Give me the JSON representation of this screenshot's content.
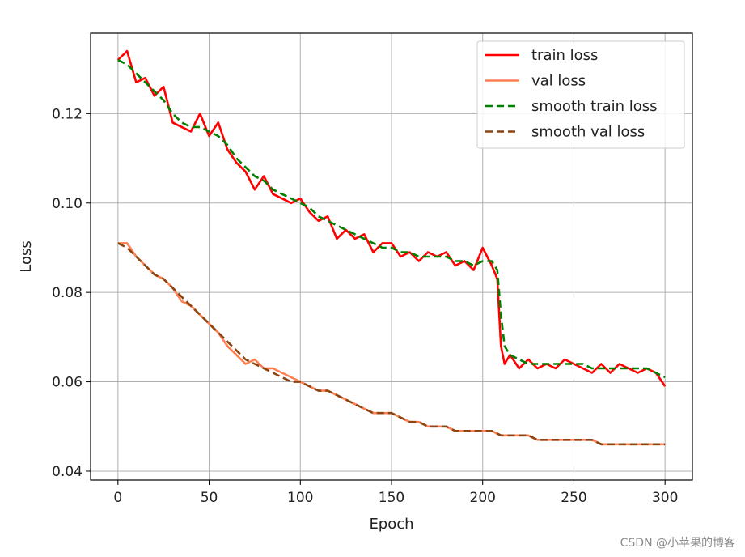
{
  "chart_data": {
    "type": "line",
    "xlabel": "Epoch",
    "ylabel": "Loss",
    "xlim": [
      -15,
      315
    ],
    "ylim": [
      0.038,
      0.138
    ],
    "xticks": [
      0,
      50,
      100,
      150,
      200,
      250,
      300
    ],
    "yticks": [
      0.04,
      0.06,
      0.08,
      0.1,
      0.12
    ],
    "ytick_labels": [
      "0.04",
      "0.06",
      "0.08",
      "0.10",
      "0.12"
    ],
    "grid": true,
    "legend_position": "top-right",
    "series": [
      {
        "name": "train loss",
        "color": "#ff0000",
        "style": "solid",
        "x": [
          0,
          5,
          10,
          15,
          20,
          25,
          30,
          35,
          40,
          45,
          50,
          55,
          60,
          65,
          70,
          75,
          80,
          85,
          90,
          95,
          100,
          105,
          110,
          115,
          120,
          125,
          130,
          135,
          140,
          145,
          150,
          155,
          160,
          165,
          170,
          175,
          180,
          185,
          190,
          195,
          200,
          205,
          208,
          210,
          212,
          215,
          220,
          225,
          230,
          235,
          240,
          245,
          250,
          255,
          260,
          265,
          270,
          275,
          280,
          285,
          290,
          295,
          300
        ],
        "y": [
          0.132,
          0.134,
          0.127,
          0.128,
          0.124,
          0.126,
          0.118,
          0.117,
          0.116,
          0.12,
          0.115,
          0.118,
          0.112,
          0.109,
          0.107,
          0.103,
          0.106,
          0.102,
          0.101,
          0.1,
          0.101,
          0.098,
          0.096,
          0.097,
          0.092,
          0.094,
          0.092,
          0.093,
          0.089,
          0.091,
          0.091,
          0.088,
          0.089,
          0.087,
          0.089,
          0.088,
          0.089,
          0.086,
          0.087,
          0.085,
          0.09,
          0.086,
          0.083,
          0.068,
          0.064,
          0.066,
          0.063,
          0.065,
          0.063,
          0.064,
          0.063,
          0.065,
          0.064,
          0.063,
          0.062,
          0.064,
          0.062,
          0.064,
          0.063,
          0.062,
          0.063,
          0.062,
          0.059
        ]
      },
      {
        "name": "val loss",
        "color": "#ff7f50",
        "style": "solid",
        "x": [
          0,
          5,
          10,
          15,
          20,
          25,
          30,
          35,
          40,
          45,
          50,
          55,
          60,
          65,
          70,
          75,
          80,
          85,
          90,
          95,
          100,
          105,
          110,
          115,
          120,
          125,
          130,
          135,
          140,
          145,
          150,
          155,
          160,
          165,
          170,
          175,
          180,
          185,
          190,
          195,
          200,
          205,
          210,
          215,
          220,
          225,
          230,
          235,
          240,
          245,
          250,
          255,
          260,
          265,
          270,
          275,
          280,
          285,
          290,
          295,
          300
        ],
        "y": [
          0.091,
          0.091,
          0.088,
          0.086,
          0.084,
          0.083,
          0.081,
          0.078,
          0.077,
          0.075,
          0.073,
          0.071,
          0.068,
          0.066,
          0.064,
          0.065,
          0.063,
          0.063,
          0.062,
          0.061,
          0.06,
          0.059,
          0.058,
          0.058,
          0.057,
          0.056,
          0.055,
          0.054,
          0.053,
          0.053,
          0.053,
          0.052,
          0.051,
          0.051,
          0.05,
          0.05,
          0.05,
          0.049,
          0.049,
          0.049,
          0.049,
          0.049,
          0.048,
          0.048,
          0.048,
          0.048,
          0.047,
          0.047,
          0.047,
          0.047,
          0.047,
          0.047,
          0.047,
          0.046,
          0.046,
          0.046,
          0.046,
          0.046,
          0.046,
          0.046,
          0.046
        ]
      },
      {
        "name": "smooth train loss",
        "color": "#008000",
        "style": "dashed",
        "x": [
          0,
          5,
          10,
          15,
          20,
          25,
          30,
          35,
          40,
          45,
          50,
          55,
          60,
          65,
          70,
          75,
          80,
          85,
          90,
          95,
          100,
          105,
          110,
          115,
          120,
          125,
          130,
          135,
          140,
          145,
          150,
          155,
          160,
          165,
          170,
          175,
          180,
          185,
          190,
          195,
          200,
          205,
          208,
          210,
          212,
          215,
          220,
          225,
          230,
          235,
          240,
          245,
          250,
          255,
          260,
          265,
          270,
          275,
          280,
          285,
          290,
          295,
          300
        ],
        "y": [
          0.132,
          0.131,
          0.129,
          0.127,
          0.125,
          0.123,
          0.12,
          0.118,
          0.117,
          0.117,
          0.116,
          0.115,
          0.113,
          0.11,
          0.108,
          0.106,
          0.105,
          0.103,
          0.102,
          0.101,
          0.1,
          0.099,
          0.097,
          0.096,
          0.095,
          0.094,
          0.093,
          0.092,
          0.091,
          0.09,
          0.09,
          0.089,
          0.089,
          0.088,
          0.088,
          0.088,
          0.088,
          0.087,
          0.087,
          0.086,
          0.087,
          0.087,
          0.085,
          0.075,
          0.068,
          0.066,
          0.065,
          0.064,
          0.064,
          0.064,
          0.064,
          0.064,
          0.064,
          0.064,
          0.063,
          0.063,
          0.063,
          0.063,
          0.063,
          0.063,
          0.063,
          0.062,
          0.061
        ]
      },
      {
        "name": "smooth val loss",
        "color": "#8b4513",
        "style": "dashed",
        "x": [
          0,
          5,
          10,
          15,
          20,
          25,
          30,
          35,
          40,
          45,
          50,
          55,
          60,
          65,
          70,
          75,
          80,
          85,
          90,
          95,
          100,
          105,
          110,
          115,
          120,
          125,
          130,
          135,
          140,
          145,
          150,
          155,
          160,
          165,
          170,
          175,
          180,
          185,
          190,
          195,
          200,
          205,
          210,
          215,
          220,
          225,
          230,
          235,
          240,
          245,
          250,
          255,
          260,
          265,
          270,
          275,
          280,
          285,
          290,
          295,
          300
        ],
        "y": [
          0.091,
          0.09,
          0.088,
          0.086,
          0.084,
          0.083,
          0.081,
          0.079,
          0.077,
          0.075,
          0.073,
          0.071,
          0.069,
          0.067,
          0.065,
          0.064,
          0.063,
          0.062,
          0.061,
          0.06,
          0.06,
          0.059,
          0.058,
          0.058,
          0.057,
          0.056,
          0.055,
          0.054,
          0.053,
          0.053,
          0.053,
          0.052,
          0.051,
          0.051,
          0.05,
          0.05,
          0.05,
          0.049,
          0.049,
          0.049,
          0.049,
          0.049,
          0.048,
          0.048,
          0.048,
          0.048,
          0.047,
          0.047,
          0.047,
          0.047,
          0.047,
          0.047,
          0.047,
          0.046,
          0.046,
          0.046,
          0.046,
          0.046,
          0.046,
          0.046,
          0.046
        ]
      }
    ]
  },
  "watermark": "CSDN @小苹果的博客"
}
